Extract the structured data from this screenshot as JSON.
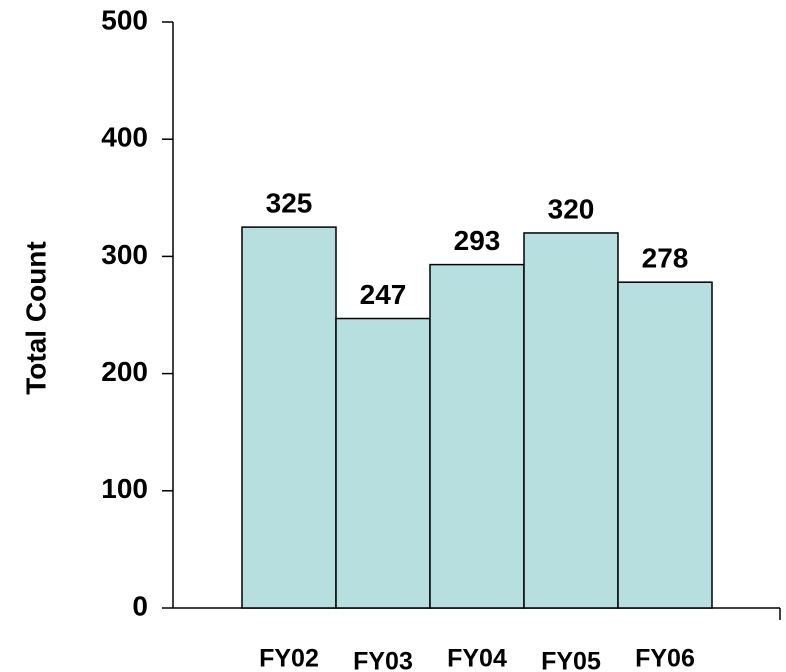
{
  "chart_data": {
    "type": "bar",
    "y_label": "Total Count",
    "categories": [
      "FY02",
      "FY03",
      "FY04",
      "FY05",
      "FY06"
    ],
    "values": [
      325,
      247,
      293,
      320,
      278
    ],
    "color": "#b8dfe0",
    "ylim": [
      0,
      500
    ],
    "yticks": [
      0,
      100,
      200,
      300,
      400,
      500
    ],
    "grid": false
  }
}
